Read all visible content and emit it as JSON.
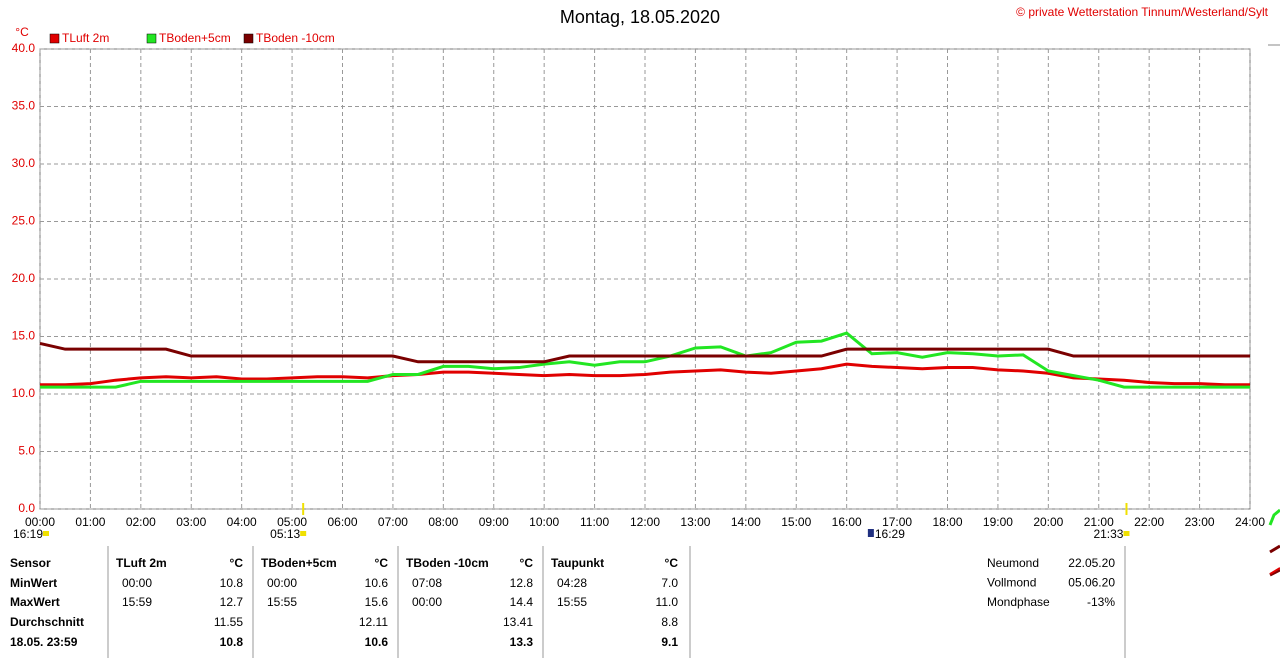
{
  "chart_data": {
    "type": "line",
    "title": "Montag, 18.05.2020",
    "copyright": "© private Wetterstation Tinnum/Westerland/Sylt",
    "y_label": "°C",
    "x": [
      0,
      0.5,
      1,
      1.5,
      2,
      2.5,
      3,
      3.5,
      4,
      4.5,
      5,
      5.5,
      6,
      6.5,
      7,
      7.5,
      8,
      8.5,
      9,
      9.5,
      10,
      10.5,
      11,
      11.5,
      12,
      12.5,
      13,
      13.5,
      14,
      14.5,
      15,
      15.5,
      16,
      16.5,
      17,
      17.5,
      18,
      18.5,
      19,
      19.5,
      20,
      20.5,
      21,
      21.5,
      22,
      22.5,
      23,
      23.5,
      24
    ],
    "series": [
      {
        "name": "TLuft 2m",
        "color": "#e00000",
        "values": [
          10.8,
          10.8,
          10.9,
          11.2,
          11.4,
          11.5,
          11.4,
          11.5,
          11.3,
          11.3,
          11.4,
          11.5,
          11.5,
          11.4,
          11.6,
          11.7,
          11.9,
          11.9,
          11.8,
          11.7,
          11.6,
          11.7,
          11.6,
          11.6,
          11.7,
          11.9,
          12.0,
          12.1,
          11.9,
          11.8,
          12.0,
          12.2,
          12.6,
          12.4,
          12.3,
          12.2,
          12.3,
          12.3,
          12.1,
          12.0,
          11.8,
          11.4,
          11.3,
          11.2,
          11.0,
          10.9,
          10.9,
          10.8,
          10.8
        ]
      },
      {
        "name": "TBoden+5cm",
        "color": "#22e622",
        "values": [
          10.6,
          10.6,
          10.6,
          10.6,
          11.1,
          11.1,
          11.1,
          11.1,
          11.1,
          11.1,
          11.1,
          11.1,
          11.1,
          11.1,
          11.7,
          11.7,
          12.4,
          12.4,
          12.2,
          12.3,
          12.6,
          12.8,
          12.5,
          12.8,
          12.8,
          13.3,
          14.0,
          14.1,
          13.3,
          13.6,
          14.5,
          14.6,
          15.3,
          13.5,
          13.6,
          13.2,
          13.6,
          13.5,
          13.3,
          13.4,
          12.0,
          11.6,
          11.2,
          10.6,
          10.6,
          10.6,
          10.6,
          10.6,
          10.6
        ]
      },
      {
        "name": "TBoden -10cm",
        "color": "#7a0000",
        "values": [
          14.4,
          13.9,
          13.9,
          13.9,
          13.9,
          13.9,
          13.3,
          13.3,
          13.3,
          13.3,
          13.3,
          13.3,
          13.3,
          13.3,
          13.3,
          12.8,
          12.8,
          12.8,
          12.8,
          12.8,
          12.8,
          13.3,
          13.3,
          13.3,
          13.3,
          13.3,
          13.3,
          13.3,
          13.3,
          13.3,
          13.3,
          13.3,
          13.9,
          13.9,
          13.9,
          13.9,
          13.9,
          13.9,
          13.9,
          13.9,
          13.9,
          13.3,
          13.3,
          13.3,
          13.3,
          13.3,
          13.3,
          13.3,
          13.3
        ]
      }
    ],
    "xlim": [
      0,
      24
    ],
    "xticks": [
      {
        "value": 0,
        "label": "00:00"
      },
      {
        "value": 1,
        "label": "01:00"
      },
      {
        "value": 2,
        "label": "02:00"
      },
      {
        "value": 3,
        "label": "03:00"
      },
      {
        "value": 4,
        "label": "04:00"
      },
      {
        "value": 5,
        "label": "05:00"
      },
      {
        "value": 6,
        "label": "06:00"
      },
      {
        "value": 7,
        "label": "07:00"
      },
      {
        "value": 8,
        "label": "08:00"
      },
      {
        "value": 9,
        "label": "09:00"
      },
      {
        "value": 10,
        "label": "10:00"
      },
      {
        "value": 11,
        "label": "11:00"
      },
      {
        "value": 12,
        "label": "12:00"
      },
      {
        "value": 13,
        "label": "13:00"
      },
      {
        "value": 14,
        "label": "14:00"
      },
      {
        "value": 15,
        "label": "15:00"
      },
      {
        "value": 16,
        "label": "16:00"
      },
      {
        "value": 17,
        "label": "17:00"
      },
      {
        "value": 18,
        "label": "18:00"
      },
      {
        "value": 19,
        "label": "19:00"
      },
      {
        "value": 20,
        "label": "20:00"
      },
      {
        "value": 21,
        "label": "21:00"
      },
      {
        "value": 22,
        "label": "22:00"
      },
      {
        "value": 23,
        "label": "23:00"
      },
      {
        "value": 24,
        "label": "24:00"
      }
    ],
    "ylim": [
      0,
      40
    ],
    "yticks": [
      {
        "value": 0,
        "label": "0.0"
      },
      {
        "value": 5,
        "label": "5.0"
      },
      {
        "value": 10,
        "label": "10.0"
      },
      {
        "value": 15,
        "label": "15.0"
      },
      {
        "value": 20,
        "label": "20.0"
      },
      {
        "value": 25,
        "label": "25.0"
      },
      {
        "value": 30,
        "label": "30.0"
      },
      {
        "value": 35,
        "label": "35.0"
      },
      {
        "value": 40,
        "label": "40.0"
      }
    ],
    "grid": true,
    "annotations": [
      {
        "x": 0,
        "label": "16:19"
      },
      {
        "x": 5.22,
        "label": "05:13"
      },
      {
        "x": 16.48,
        "label": "16:29"
      },
      {
        "x": 21.55,
        "label": "21:33"
      }
    ]
  },
  "table": {
    "header": [
      "Sensor",
      "TLuft 2m",
      "°C",
      "TBoden+5cm",
      "°C",
      "TBoden -10cm",
      "°C",
      "Taupunkt",
      "°C"
    ],
    "rows": [
      {
        "label": "MinWert",
        "cells": [
          [
            "00:00",
            "10.8"
          ],
          [
            "00:00",
            "10.6"
          ],
          [
            "07:08",
            "12.8"
          ],
          [
            "04:28",
            "7.0"
          ]
        ]
      },
      {
        "label": "MaxWert",
        "cells": [
          [
            "15:59",
            "12.7"
          ],
          [
            "15:55",
            "15.6"
          ],
          [
            "00:00",
            "14.4"
          ],
          [
            "15:55",
            "11.0"
          ]
        ]
      },
      {
        "label": "Durchschnitt",
        "cells": [
          [
            null,
            "11.55"
          ],
          [
            null,
            "12.11"
          ],
          [
            null,
            "13.41"
          ],
          [
            null,
            "8.8"
          ]
        ]
      },
      {
        "label": "18.05. 23:59",
        "cells": [
          [
            null,
            "10.8"
          ],
          [
            null,
            "10.6"
          ],
          [
            null,
            "13.3"
          ],
          [
            null,
            "9.1"
          ]
        ]
      }
    ]
  },
  "moon": {
    "rows": [
      [
        "Neumond",
        "22.05.20"
      ],
      [
        "Vollmond",
        "05.06.20"
      ],
      [
        "Mondphase",
        "-13%"
      ]
    ]
  }
}
